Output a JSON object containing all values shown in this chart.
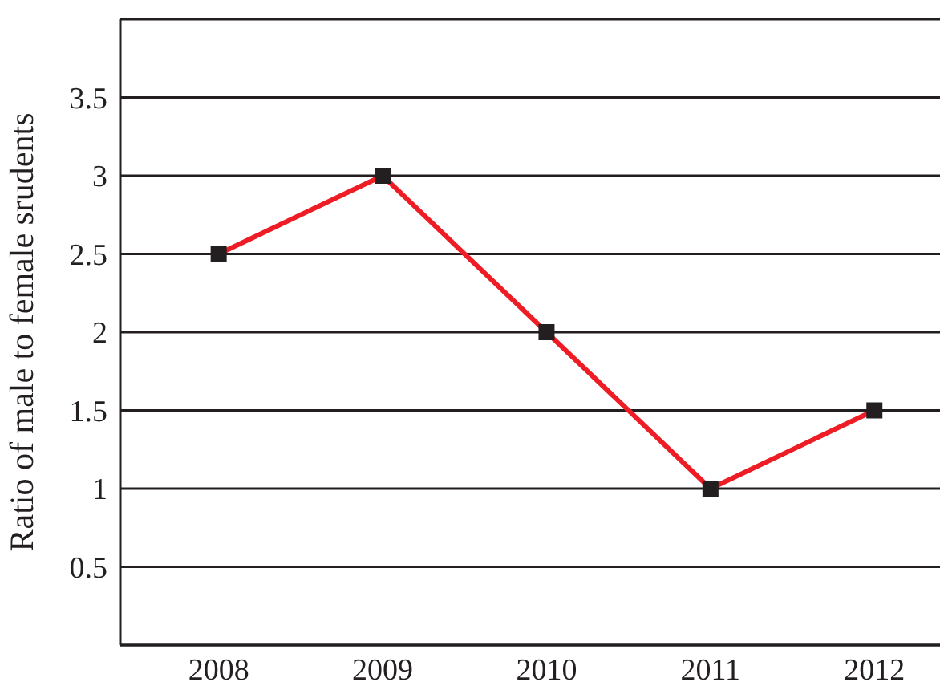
{
  "chart_data": {
    "type": "line",
    "ylabel": "Ratio of male to female srudents",
    "categories": [
      "2008",
      "2009",
      "2010",
      "2011",
      "2012"
    ],
    "series": [
      {
        "color": "#ee1c25",
        "values": [
          2.5,
          3,
          2,
          1,
          1.5
        ]
      }
    ],
    "ylim": [
      0,
      4
    ],
    "yticks": [
      0.5,
      1,
      1.5,
      2,
      2.5,
      3,
      3.5
    ],
    "grid": "y",
    "marker": "square",
    "legend": false
  }
}
